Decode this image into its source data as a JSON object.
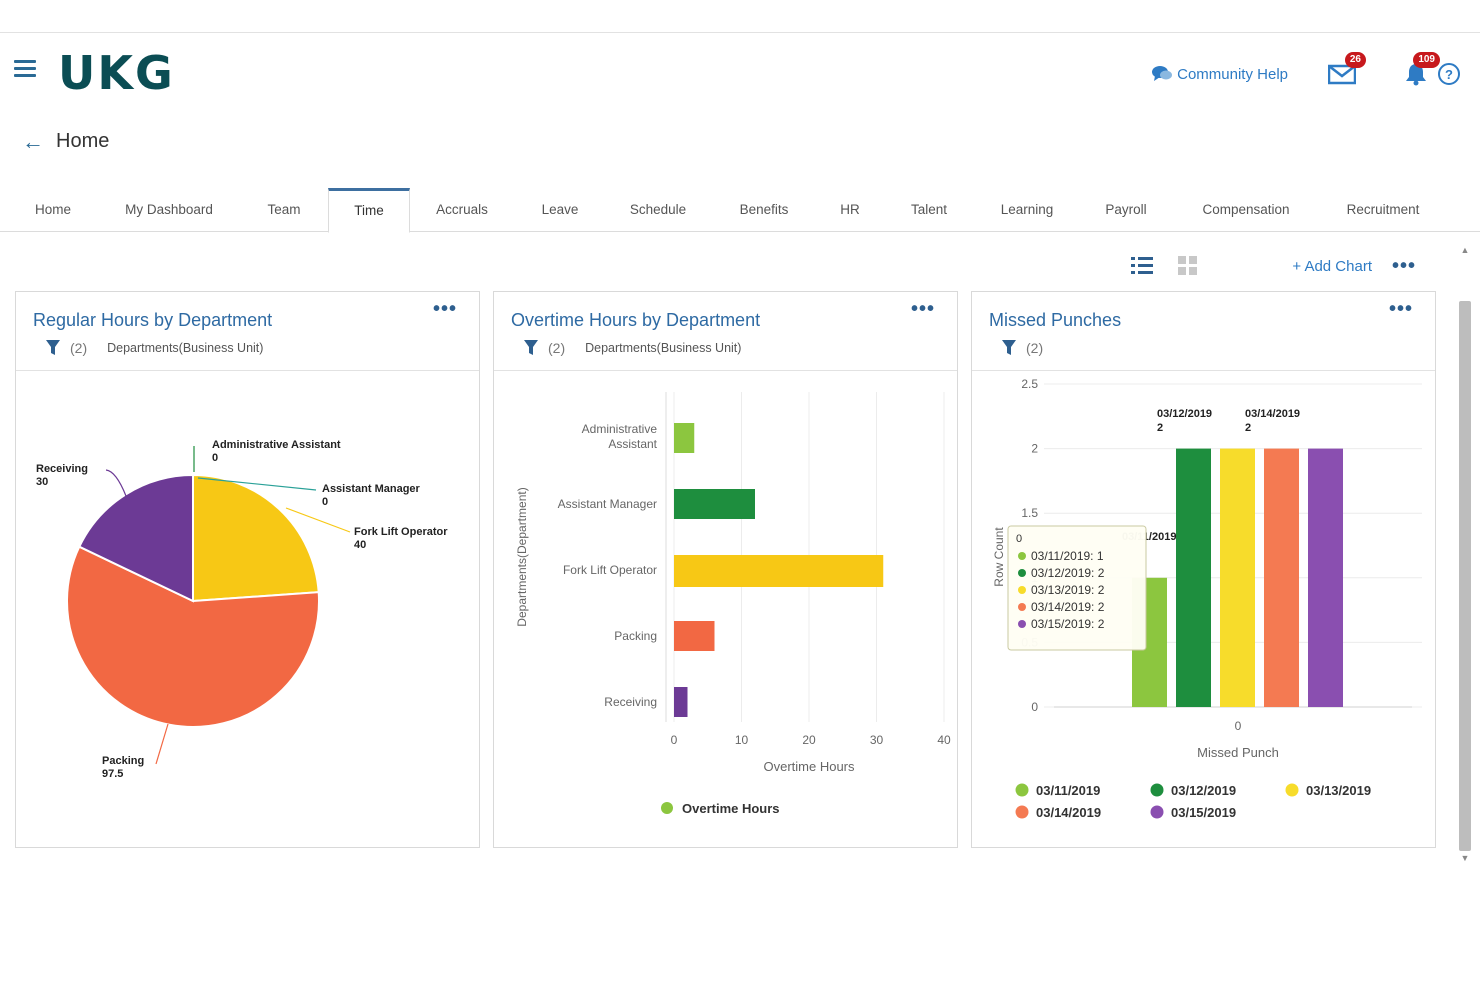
{
  "app": {
    "logo": "UKG",
    "community_help": "Community Help",
    "mail_badge": "26",
    "bell_badge": "109",
    "help_glyph": "?"
  },
  "breadcrumb": {
    "back_glyph": "←",
    "title": "Home"
  },
  "tabs": [
    {
      "label": "Home",
      "active": false
    },
    {
      "label": "My Dashboard",
      "active": false
    },
    {
      "label": "Team",
      "active": false
    },
    {
      "label": "Time",
      "active": true
    },
    {
      "label": "Accruals",
      "active": false
    },
    {
      "label": "Leave",
      "active": false
    },
    {
      "label": "Schedule",
      "active": false
    },
    {
      "label": "Benefits",
      "active": false
    },
    {
      "label": "HR",
      "active": false
    },
    {
      "label": "Talent",
      "active": false
    },
    {
      "label": "Learning",
      "active": false
    },
    {
      "label": "Payroll",
      "active": false
    },
    {
      "label": "Compensation",
      "active": false
    },
    {
      "label": "Recruitment",
      "active": false
    }
  ],
  "toolbar": {
    "add_chart": "+ Add Chart",
    "more": "•••"
  },
  "colors": {
    "brand": "#0b4d54",
    "link": "#2e7bc4",
    "title": "#2e6aa3",
    "light_green": "#8cc63f",
    "dark_green": "#1e8e3e",
    "yellow": "#f7c815",
    "orange": "#f47a52",
    "red_orange": "#f26843",
    "purple": "#6c3a95"
  },
  "cards": [
    {
      "title": "Regular Hours by Department",
      "menu": "•••",
      "filter_count": "(2)",
      "filter_label": "Departments(Business Unit)"
    },
    {
      "title": "Overtime Hours by Department",
      "menu": "•••",
      "filter_count": "(2)",
      "filter_label": "Departments(Business Unit)"
    },
    {
      "title": "Missed Punches",
      "menu": "•••",
      "filter_count": "(2)",
      "filter_label": ""
    }
  ],
  "chart_data": [
    {
      "type": "pie",
      "title": "Regular Hours by Department",
      "series": [
        {
          "name": "Administrative Assistant",
          "value": 0,
          "color": "#1e8e3e"
        },
        {
          "name": "Assistant Manager",
          "value": 0,
          "color": "#2aa198"
        },
        {
          "name": "Fork Lift Operator",
          "value": 40,
          "color": "#f7c815"
        },
        {
          "name": "Packing",
          "value": 97.5,
          "color": "#f26843"
        },
        {
          "name": "Receiving",
          "value": 30,
          "color": "#6c3a95"
        }
      ]
    },
    {
      "type": "bar",
      "orientation": "horizontal",
      "title": "Overtime Hours by Department",
      "categories": [
        "Administrative Assistant",
        "Assistant Manager",
        "Fork Lift Operator",
        "Packing",
        "Receiving"
      ],
      "values": [
        3,
        12,
        31,
        6,
        2
      ],
      "colors": [
        "#8cc63f",
        "#1e8e3e",
        "#f7c815",
        "#f26843",
        "#6c3a95"
      ],
      "xlabel": "Overtime Hours",
      "ylabel": "Departments(Department)",
      "xlim": [
        0,
        40
      ],
      "xticks": [
        "0",
        "10",
        "20",
        "30",
        "40"
      ],
      "legend": "Overtime Hours",
      "legend_position": "bottom"
    },
    {
      "type": "bar",
      "title": "Missed Punches",
      "categories": [
        "0"
      ],
      "series": [
        {
          "name": "03/11/2019",
          "values": [
            1
          ],
          "color": "#8cc63f"
        },
        {
          "name": "03/12/2019",
          "values": [
            2
          ],
          "color": "#1e8e3e"
        },
        {
          "name": "03/13/2019",
          "values": [
            2
          ],
          "color": "#f7dc2b"
        },
        {
          "name": "03/14/2019",
          "values": [
            2
          ],
          "color": "#f47a52"
        },
        {
          "name": "03/15/2019",
          "values": [
            2
          ],
          "color": "#8a4fb0"
        }
      ],
      "xlabel": "Missed Punch",
      "ylabel": "Row Count",
      "ylim": [
        0,
        2.5
      ],
      "yticks": [
        "0",
        "0.5",
        "1",
        "1.5",
        "2",
        "2.5"
      ],
      "data_labels": [
        "03/11/2019",
        "1",
        "03/12/2019",
        "2",
        "03/14/2019",
        "2"
      ],
      "tooltip": {
        "header": "0",
        "lines": [
          "03/11/2019: 1",
          "03/12/2019: 2",
          "03/13/2019: 2",
          "03/14/2019: 2",
          "03/15/2019: 2"
        ]
      },
      "legend_position": "bottom"
    }
  ]
}
